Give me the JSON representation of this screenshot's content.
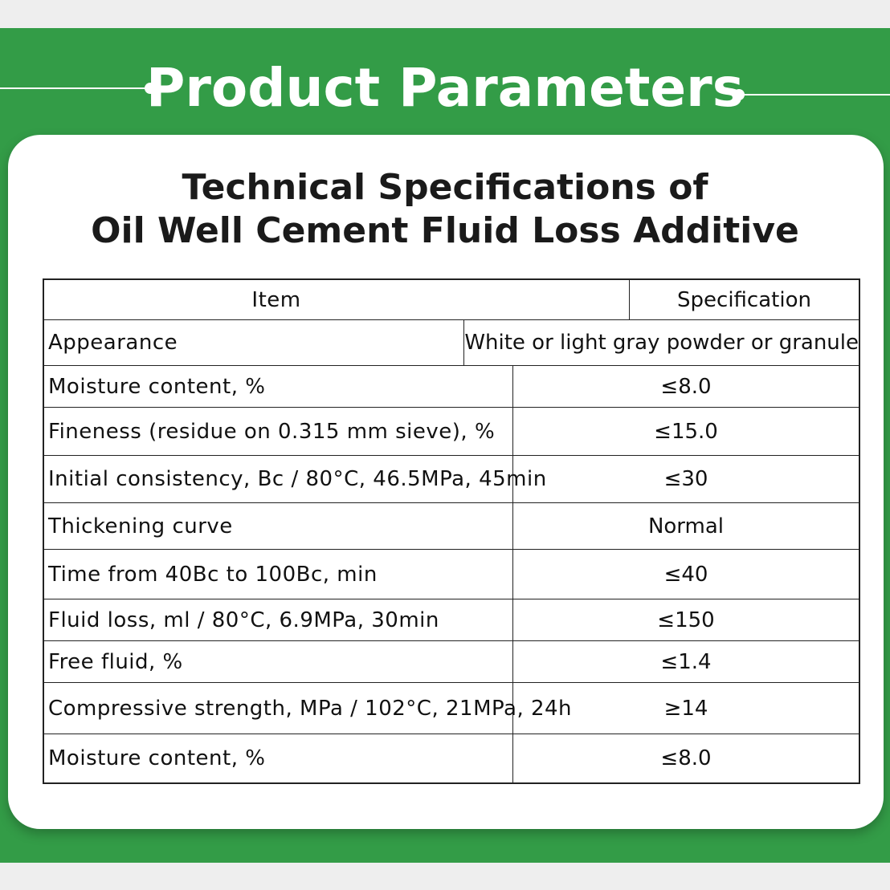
{
  "header": {
    "title": "Product Parameters"
  },
  "card": {
    "title": [
      "Technical Specifications of",
      "Oil Well Cement Fluid Loss Additive"
    ]
  },
  "table": {
    "columns": [
      "Item",
      "Specification"
    ],
    "rows": [
      [
        "Appearance",
        "White or light gray powder or granule"
      ],
      [
        "Moisture content, %",
        "≤8.0"
      ],
      [
        "Fineness (residue on 0.315 mm sieve), %",
        "≤15.0"
      ],
      [
        "Initial consistency, Bc / 80°C, 46.5MPa, 45min",
        "≤30"
      ],
      [
        "Thickening curve",
        "Normal"
      ],
      [
        "Time from 40Bc to 100Bc, min",
        "≤40"
      ],
      [
        "Fluid loss, ml / 80°C, 6.9MPa, 30min",
        "≤150"
      ],
      [
        "Free fluid, %",
        "≤1.4"
      ],
      [
        "Compressive strength, MPa / 102°C, 21MPa, 24h",
        "≥14"
      ],
      [
        "Moisture content, %",
        "≤8.0"
      ]
    ]
  }
}
